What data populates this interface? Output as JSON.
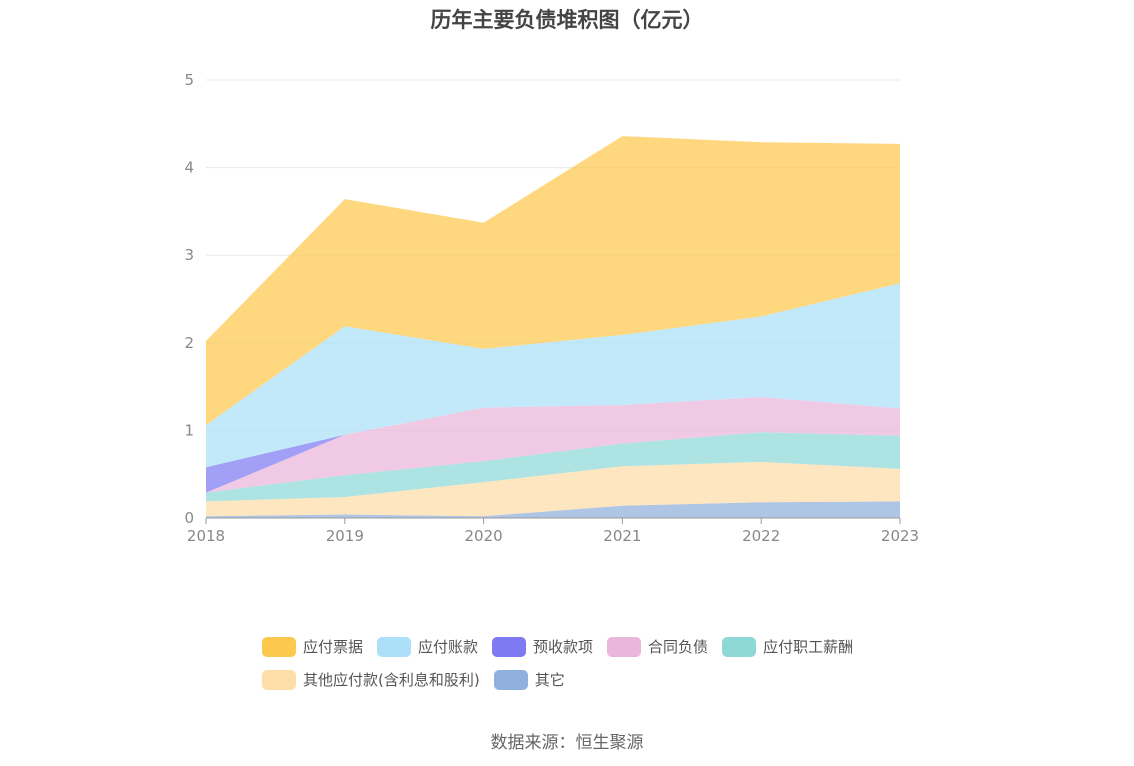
{
  "chart_data": {
    "type": "area",
    "stacked": true,
    "title": "历年主要负债堆积图（亿元）",
    "x": [
      "2018",
      "2019",
      "2020",
      "2021",
      "2022",
      "2023"
    ],
    "ylim": [
      0,
      5
    ],
    "yticks": [
      0,
      1,
      2,
      3,
      4,
      5
    ],
    "grid": true,
    "legend_position": "bottom",
    "series": [
      {
        "name": "其它",
        "color": "#8FAFDD",
        "values": [
          0.02,
          0.04,
          0.02,
          0.14,
          0.18,
          0.19
        ]
      },
      {
        "name": "其他应付款(含利息和股利)",
        "color": "#FDDDA8",
        "values": [
          0.17,
          0.2,
          0.39,
          0.45,
          0.46,
          0.37
        ]
      },
      {
        "name": "应付职工薪酬",
        "color": "#8FD8D8",
        "values": [
          0.1,
          0.25,
          0.24,
          0.26,
          0.34,
          0.38
        ]
      },
      {
        "name": "合同负债",
        "color": "#EAB6DA",
        "values": [
          0.0,
          0.46,
          0.61,
          0.44,
          0.4,
          0.31
        ]
      },
      {
        "name": "预收款项",
        "color": "#7E7AF2",
        "values": [
          0.29,
          0.0,
          0.0,
          0.0,
          0.0,
          0.0
        ]
      },
      {
        "name": "应付账款",
        "color": "#ABE0F8",
        "values": [
          0.48,
          1.24,
          0.67,
          0.8,
          0.92,
          1.43
        ]
      },
      {
        "name": "应付票据",
        "color": "#FDC84E",
        "values": [
          0.96,
          1.45,
          1.44,
          2.27,
          1.99,
          1.59
        ]
      }
    ],
    "legend_order": [
      "应付票据",
      "应付账款",
      "预收款项",
      "合同负债",
      "应付职工薪酬",
      "其他应付款(含利息和股利)",
      "其它"
    ]
  },
  "source_text": "数据来源：恒生聚源"
}
